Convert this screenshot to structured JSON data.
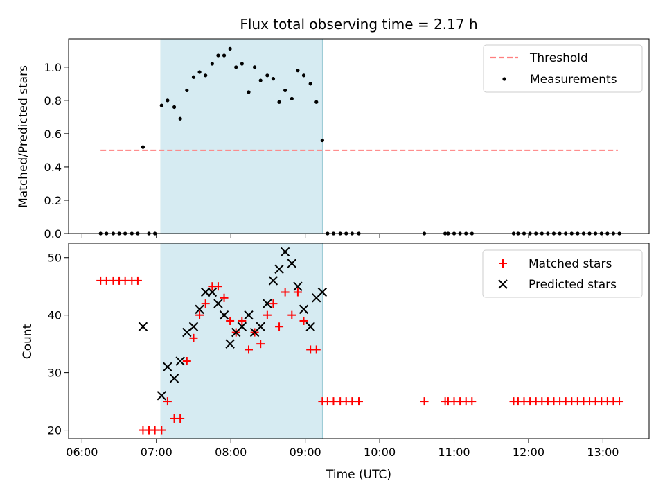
{
  "chart_data": [
    {
      "type": "scatter",
      "title": "Flux total observing time = 2.17 h",
      "xlabel": "",
      "ylabel": "Matched/Predicted stars",
      "xlim": [
        5.82,
        13.62
      ],
      "ylim": [
        0,
        1.17
      ],
      "yticks": [
        0.0,
        0.2,
        0.4,
        0.6,
        0.8,
        1.0
      ],
      "ytick_labels": [
        "0.0",
        "0.2",
        "0.4",
        "0.6",
        "0.8",
        "1.0"
      ],
      "shaded_span": [
        7.06,
        9.23
      ],
      "legend_position": "top-right",
      "colors": {
        "threshold": "#ff7f7f",
        "measurements": "#000000",
        "shade": "#add8e6"
      },
      "series": [
        {
          "name": "Threshold",
          "kind": "dashed-line",
          "x": [
            6.25,
            13.2
          ],
          "y": [
            0.5,
            0.5
          ]
        },
        {
          "name": "Measurements",
          "kind": "dots",
          "x": [
            6.25,
            6.33,
            6.42,
            6.5,
            6.58,
            6.67,
            6.75,
            6.82,
            6.9,
            6.98,
            7.07,
            7.15,
            7.24,
            7.32,
            7.41,
            7.5,
            7.58,
            7.66,
            7.75,
            7.83,
            7.91,
            7.99,
            8.07,
            8.15,
            8.24,
            8.32,
            8.4,
            8.49,
            8.57,
            8.65,
            8.73,
            8.82,
            8.9,
            8.98,
            9.07,
            9.15,
            9.23,
            9.3,
            9.38,
            9.47,
            9.55,
            9.63,
            9.72,
            10.6,
            10.88,
            10.92,
            11.0,
            11.08,
            11.16,
            11.24,
            11.8,
            11.86,
            11.94,
            12.02,
            12.1,
            12.18,
            12.26,
            12.34,
            12.42,
            12.5,
            12.58,
            12.66,
            12.74,
            12.82,
            12.9,
            12.98,
            13.06,
            13.14,
            13.22
          ],
          "y": [
            0,
            0,
            0,
            0,
            0,
            0,
            0,
            0.52,
            0,
            0,
            0.77,
            0.8,
            0.76,
            0.69,
            0.86,
            0.94,
            0.97,
            0.95,
            1.02,
            1.07,
            1.07,
            1.11,
            1.0,
            1.02,
            0.85,
            1.0,
            0.92,
            0.95,
            0.93,
            0.79,
            0.86,
            0.81,
            0.98,
            0.95,
            0.9,
            0.79,
            0.56,
            0,
            0,
            0,
            0,
            0,
            0,
            0,
            0,
            0,
            0,
            0,
            0,
            0,
            0,
            0,
            0,
            0,
            0,
            0,
            0,
            0,
            0,
            0,
            0,
            0,
            0,
            0,
            0,
            0,
            0,
            0,
            0
          ]
        }
      ]
    },
    {
      "type": "scatter",
      "title": "",
      "xlabel": "Time (UTC)",
      "ylabel": "Count",
      "xlim": [
        5.82,
        13.62
      ],
      "ylim": [
        18.5,
        52.5
      ],
      "xticks": [
        6,
        7,
        8,
        9,
        10,
        11,
        12,
        13
      ],
      "xtick_labels": [
        "06:00",
        "07:00",
        "08:00",
        "09:00",
        "10:00",
        "11:00",
        "12:00",
        "13:00"
      ],
      "yticks": [
        20,
        30,
        40,
        50
      ],
      "ytick_labels": [
        "20",
        "30",
        "40",
        "50"
      ],
      "shaded_span": [
        7.06,
        9.23
      ],
      "legend_position": "top-right",
      "colors": {
        "matched": "#ff0000",
        "predicted": "#000000",
        "shade": "#add8e6"
      },
      "series": [
        {
          "name": "Matched stars",
          "marker": "plus",
          "x": [
            6.25,
            6.33,
            6.42,
            6.5,
            6.58,
            6.67,
            6.75,
            6.82,
            6.9,
            6.98,
            7.07,
            7.15,
            7.24,
            7.32,
            7.41,
            7.5,
            7.58,
            7.66,
            7.75,
            7.83,
            7.91,
            7.99,
            8.07,
            8.15,
            8.24,
            8.32,
            8.4,
            8.49,
            8.57,
            8.65,
            8.73,
            8.82,
            8.9,
            8.98,
            9.07,
            9.15,
            9.23,
            9.3,
            9.38,
            9.47,
            9.55,
            9.63,
            9.72,
            10.6,
            10.88,
            10.92,
            11.0,
            11.08,
            11.16,
            11.24,
            11.8,
            11.86,
            11.94,
            12.02,
            12.1,
            12.18,
            12.26,
            12.34,
            12.42,
            12.5,
            12.58,
            12.66,
            12.74,
            12.82,
            12.9,
            12.98,
            13.06,
            13.14,
            13.22
          ],
          "y": [
            46,
            46,
            46,
            46,
            46,
            46,
            46,
            20,
            20,
            20,
            20,
            25,
            22,
            22,
            32,
            36,
            40,
            42,
            45,
            45,
            43,
            39,
            37,
            39,
            34,
            37,
            35,
            40,
            42,
            38,
            44,
            40,
            44,
            39,
            34,
            34,
            25,
            25,
            25,
            25,
            25,
            25,
            25,
            25,
            25,
            25,
            25,
            25,
            25,
            25,
            25,
            25,
            25,
            25,
            25,
            25,
            25,
            25,
            25,
            25,
            25,
            25,
            25,
            25,
            25,
            25,
            25,
            25,
            25
          ]
        },
        {
          "name": "Predicted stars",
          "marker": "x",
          "x": [
            6.82,
            7.07,
            7.15,
            7.24,
            7.32,
            7.41,
            7.5,
            7.58,
            7.66,
            7.75,
            7.83,
            7.91,
            7.99,
            8.07,
            8.15,
            8.24,
            8.32,
            8.4,
            8.49,
            8.57,
            8.65,
            8.73,
            8.82,
            8.9,
            8.98,
            9.07,
            9.15,
            9.23
          ],
          "y": [
            38,
            26,
            31,
            29,
            32,
            37,
            38,
            41,
            44,
            44,
            42,
            40,
            35,
            37,
            38,
            40,
            37,
            38,
            42,
            46,
            48,
            51,
            49,
            45,
            41,
            38,
            43,
            44
          ]
        }
      ]
    }
  ]
}
